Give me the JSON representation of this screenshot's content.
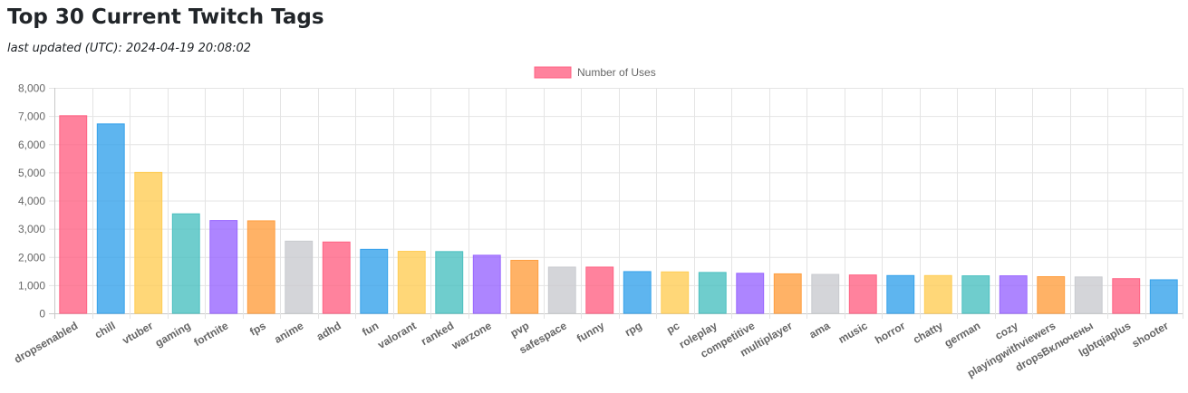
{
  "page": {
    "title": "Top 30 Current Twitch Tags",
    "subtitle": "last updated (UTC): 2024-04-19 20:08:02"
  },
  "chart_data": {
    "type": "bar",
    "title": "",
    "xlabel": "",
    "ylabel": "",
    "ylim": [
      0,
      8000
    ],
    "yticks": [
      "0",
      "1,000",
      "2,000",
      "3,000",
      "4,000",
      "5,000",
      "6,000",
      "7,000",
      "8,000"
    ],
    "grid": true,
    "legend": {
      "position": "top",
      "label": "Number of Uses",
      "color": "#ff6384"
    },
    "categories": [
      "dropsenabled",
      "chill",
      "vtuber",
      "gaming",
      "fortnite",
      "fps",
      "anime",
      "adhd",
      "fun",
      "valorant",
      "ranked",
      "warzone",
      "pvp",
      "safespace",
      "funny",
      "rpg",
      "pc",
      "roleplay",
      "competitive",
      "multiplayer",
      "ama",
      "music",
      "horror",
      "chatty",
      "german",
      "cozy",
      "playingwithviewers",
      "dropsВключены",
      "lgbtqiaplus",
      "shooter"
    ],
    "series": [
      {
        "name": "Number of Uses",
        "values": [
          7010,
          6720,
          5000,
          3530,
          3290,
          3280,
          2560,
          2530,
          2270,
          2200,
          2190,
          2060,
          1880,
          1640,
          1640,
          1480,
          1470,
          1450,
          1420,
          1400,
          1380,
          1360,
          1340,
          1340,
          1330,
          1330,
          1300,
          1290,
          1230,
          1190
        ]
      }
    ],
    "colors": [
      "#ff6384",
      "#36a2eb",
      "#ffcd56",
      "#4bc0c0",
      "#9966ff",
      "#ff9f40",
      "#c9cbcf"
    ]
  }
}
